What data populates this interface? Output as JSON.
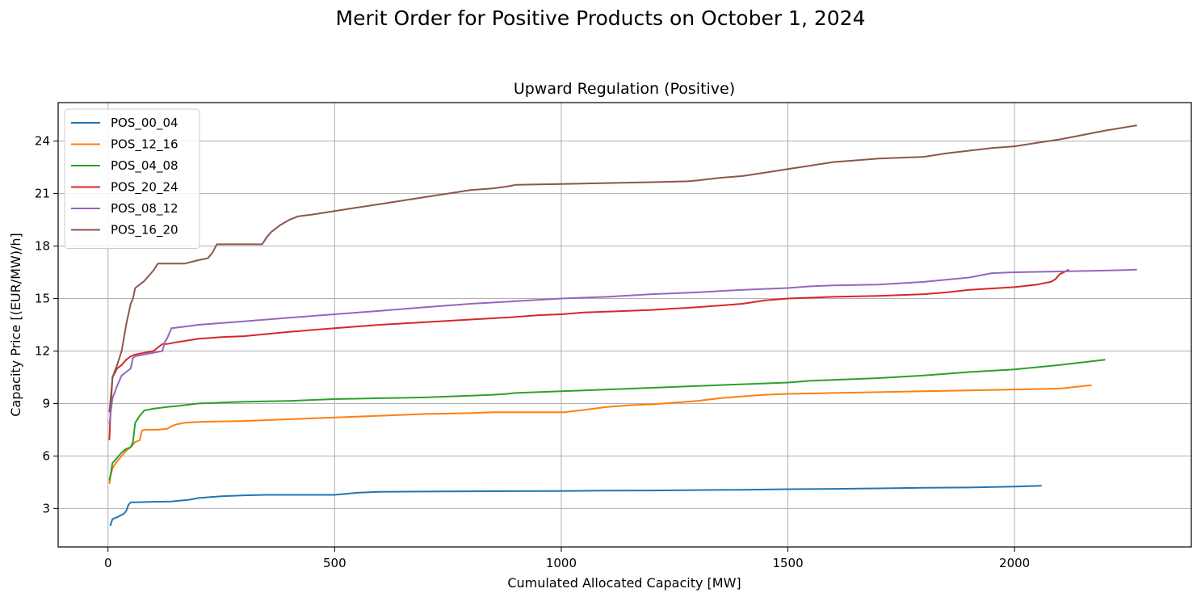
{
  "suptitle": "Merit Order for Positive Products on October 1, 2024",
  "chart_data": {
    "type": "line",
    "title": "Upward Regulation (Positive)",
    "xlabel": "Cumulated Allocated Capacity [MW]",
    "ylabel": "Capacity Price [(EUR/MW)/h]",
    "xlim": [
      -110,
      2390
    ],
    "ylim": [
      0.8,
      26.2
    ],
    "xticks": [
      0,
      500,
      1000,
      1500,
      2000
    ],
    "yticks": [
      3,
      6,
      9,
      12,
      15,
      18,
      21,
      24
    ],
    "grid": true,
    "legend_position": "upper left",
    "series": [
      {
        "name": "POS_00_04",
        "color": "#1f77b4",
        "x": [
          5,
          10,
          20,
          35,
          40,
          45,
          50,
          60,
          100,
          140,
          180,
          200,
          250,
          300,
          350,
          400,
          500,
          530,
          550,
          600,
          700,
          800,
          900,
          1000,
          1100,
          1200,
          1300,
          1400,
          1500,
          1600,
          1700,
          1800,
          1900,
          2000,
          2060
        ],
        "y": [
          2.0,
          2.4,
          2.5,
          2.7,
          2.85,
          3.2,
          3.35,
          3.35,
          3.38,
          3.4,
          3.5,
          3.6,
          3.7,
          3.75,
          3.78,
          3.78,
          3.78,
          3.85,
          3.9,
          3.95,
          3.97,
          3.98,
          3.99,
          4.0,
          4.02,
          4.03,
          4.05,
          4.07,
          4.1,
          4.12,
          4.15,
          4.18,
          4.2,
          4.25,
          4.3
        ]
      },
      {
        "name": "POS_12_16",
        "color": "#ff7f0e",
        "x": [
          3,
          6,
          10,
          20,
          30,
          40,
          50,
          60,
          70,
          75,
          80,
          110,
          130,
          140,
          150,
          170,
          200,
          300,
          400,
          500,
          600,
          700,
          800,
          850,
          900,
          950,
          1010,
          1020,
          1040,
          1100,
          1150,
          1200,
          1250,
          1300,
          1350,
          1420,
          1450,
          1500,
          1600,
          1700,
          1800,
          1900,
          2000,
          2100,
          2170
        ],
        "y": [
          4.4,
          4.9,
          5.3,
          5.7,
          6.0,
          6.3,
          6.5,
          6.8,
          6.9,
          7.45,
          7.5,
          7.5,
          7.55,
          7.7,
          7.8,
          7.9,
          7.95,
          8.0,
          8.1,
          8.2,
          8.3,
          8.4,
          8.45,
          8.5,
          8.5,
          8.5,
          8.5,
          8.55,
          8.6,
          8.8,
          8.9,
          8.95,
          9.05,
          9.15,
          9.3,
          9.45,
          9.5,
          9.55,
          9.6,
          9.65,
          9.7,
          9.75,
          9.8,
          9.85,
          10.05
        ]
      },
      {
        "name": "POS_04_08",
        "color": "#2ca02c",
        "x": [
          3,
          6,
          10,
          20,
          30,
          40,
          50,
          55,
          60,
          70,
          80,
          100,
          130,
          150,
          200,
          300,
          400,
          500,
          600,
          700,
          800,
          850,
          880,
          900,
          1000,
          1050,
          1100,
          1200,
          1300,
          1400,
          1500,
          1550,
          1600,
          1700,
          1800,
          1850,
          1900,
          2000,
          2100,
          2200
        ],
        "y": [
          4.6,
          5.0,
          5.6,
          5.9,
          6.2,
          6.4,
          6.5,
          6.8,
          7.9,
          8.3,
          8.6,
          8.7,
          8.8,
          8.85,
          9.0,
          9.1,
          9.15,
          9.25,
          9.3,
          9.35,
          9.45,
          9.5,
          9.55,
          9.6,
          9.7,
          9.75,
          9.8,
          9.9,
          10.0,
          10.1,
          10.2,
          10.3,
          10.35,
          10.45,
          10.6,
          10.7,
          10.8,
          10.95,
          11.2,
          11.5
        ]
      },
      {
        "name": "POS_20_24",
        "color": "#d62728",
        "x": [
          3,
          6,
          10,
          20,
          30,
          40,
          50,
          60,
          80,
          100,
          110,
          120,
          130,
          150,
          200,
          250,
          300,
          400,
          500,
          600,
          700,
          800,
          900,
          950,
          1000,
          1050,
          1100,
          1200,
          1300,
          1400,
          1450,
          1500,
          1600,
          1700,
          1800,
          1850,
          1900,
          2000,
          2050,
          2080,
          2090,
          2100,
          2120
        ],
        "y": [
          6.9,
          8.8,
          10.5,
          11.0,
          11.2,
          11.5,
          11.7,
          11.8,
          11.9,
          12.0,
          12.2,
          12.4,
          12.4,
          12.5,
          12.7,
          12.8,
          12.85,
          13.1,
          13.3,
          13.5,
          13.65,
          13.8,
          13.95,
          14.05,
          14.1,
          14.2,
          14.25,
          14.35,
          14.5,
          14.7,
          14.9,
          15.0,
          15.1,
          15.15,
          15.25,
          15.35,
          15.5,
          15.65,
          15.8,
          15.95,
          16.1,
          16.4,
          16.65
        ]
      },
      {
        "name": "POS_08_12",
        "color": "#9467bd",
        "x": [
          3,
          6,
          10,
          20,
          30,
          40,
          50,
          55,
          60,
          80,
          100,
          120,
          125,
          130,
          140,
          170,
          200,
          300,
          400,
          500,
          600,
          700,
          800,
          900,
          1000,
          1100,
          1200,
          1300,
          1400,
          1500,
          1550,
          1600,
          1700,
          1800,
          1900,
          1950,
          2000,
          2100,
          2200,
          2270
        ],
        "y": [
          7.8,
          8.5,
          9.3,
          10.0,
          10.6,
          10.8,
          11.0,
          11.6,
          11.7,
          11.8,
          11.9,
          12.0,
          12.5,
          12.7,
          13.3,
          13.4,
          13.5,
          13.7,
          13.9,
          14.1,
          14.3,
          14.5,
          14.7,
          14.85,
          15.0,
          15.1,
          15.25,
          15.35,
          15.5,
          15.6,
          15.7,
          15.75,
          15.8,
          15.95,
          16.2,
          16.45,
          16.5,
          16.55,
          16.6,
          16.65
        ]
      },
      {
        "name": "POS_16_20",
        "color": "#8c564b",
        "x": [
          3,
          5,
          10,
          20,
          30,
          40,
          50,
          55,
          60,
          70,
          80,
          90,
          100,
          110,
          130,
          170,
          200,
          220,
          230,
          240,
          300,
          340,
          350,
          360,
          380,
          400,
          420,
          450,
          500,
          550,
          600,
          650,
          700,
          750,
          800,
          850,
          880,
          900,
          1000,
          1100,
          1200,
          1280,
          1300,
          1350,
          1400,
          1450,
          1500,
          1550,
          1600,
          1650,
          1700,
          1800,
          1850,
          1900,
          1950,
          2000,
          2050,
          2100,
          2150,
          2200,
          2270
        ],
        "y": [
          8.5,
          9.0,
          10.5,
          11.2,
          12.0,
          13.5,
          14.7,
          15.0,
          15.6,
          15.8,
          16.0,
          16.3,
          16.6,
          17.0,
          17.0,
          17.0,
          17.2,
          17.3,
          17.6,
          18.1,
          18.1,
          18.1,
          18.5,
          18.8,
          19.2,
          19.5,
          19.7,
          19.8,
          20.0,
          20.2,
          20.4,
          20.6,
          20.8,
          21.0,
          21.2,
          21.3,
          21.4,
          21.5,
          21.55,
          21.6,
          21.65,
          21.7,
          21.75,
          21.9,
          22.0,
          22.2,
          22.4,
          22.6,
          22.8,
          22.9,
          23.0,
          23.1,
          23.3,
          23.45,
          23.6,
          23.7,
          23.9,
          24.1,
          24.35,
          24.6,
          24.9
        ]
      }
    ]
  }
}
